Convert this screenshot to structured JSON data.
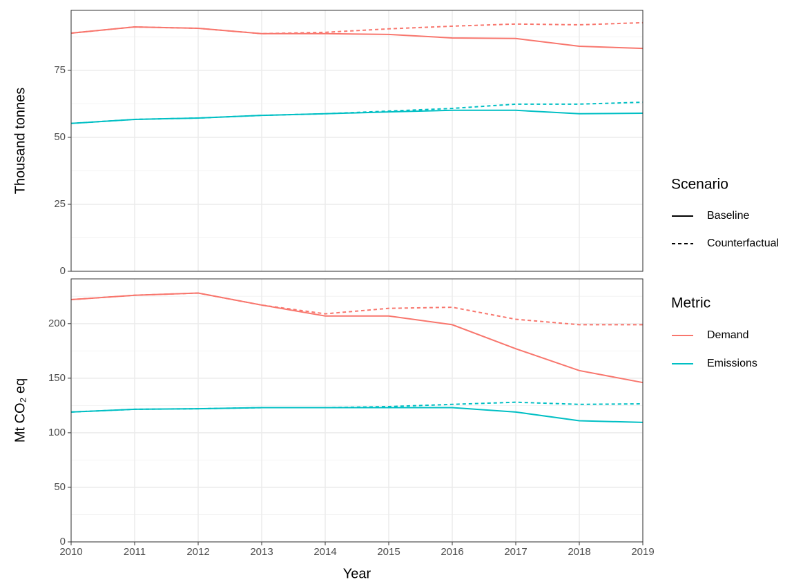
{
  "chart_data": {
    "type": "line",
    "xlabel": "Year",
    "x": [
      2010,
      2011,
      2012,
      2013,
      2014,
      2015,
      2016,
      2017,
      2018,
      2019
    ],
    "xlim": [
      2010,
      2019
    ],
    "xticks": [
      2010,
      2011,
      2012,
      2013,
      2014,
      2015,
      2016,
      2017,
      2018,
      2019
    ],
    "grid": true,
    "legend": {
      "scenario": {
        "title": "Scenario",
        "entries": [
          {
            "name": "Baseline",
            "dash": "solid"
          },
          {
            "name": "Counterfactual",
            "dash": "dashed"
          }
        ]
      },
      "metric": {
        "title": "Metric",
        "entries": [
          {
            "name": "Demand",
            "color": "#f8766d"
          },
          {
            "name": "Emissions",
            "color": "#00bfc4"
          }
        ]
      }
    },
    "panels": [
      {
        "ylabel": "Thousand tonnes",
        "ylim": [
          0,
          97.4
        ],
        "yticks": [
          0,
          25,
          50,
          75
        ],
        "lines": [
          [
            [
              88.9,
              91.2,
              90.7,
              88.7,
              88.7,
              88.4,
              87.1,
              86.9,
              84.0,
              83.2
            ],
            [
              88.9,
              91.2,
              90.7,
              88.7,
              89.2,
              90.5,
              91.5,
              92.3,
              92.0,
              92.8
            ]
          ],
          [
            [
              55.2,
              56.7,
              57.2,
              58.2,
              58.8,
              59.5,
              60.1,
              60.1,
              58.8,
              59.0
            ],
            [
              55.2,
              56.7,
              57.2,
              58.2,
              58.8,
              59.8,
              60.8,
              62.4,
              62.4,
              63.1
            ]
          ]
        ]
      },
      {
        "ylabel": "Mt CO₂ eq",
        "ylim": [
          0,
          241
        ],
        "yticks": [
          0,
          50,
          100,
          150,
          200
        ],
        "lines": [
          [
            [
              222,
              226,
              228,
              217,
              207,
              207,
              199,
              177,
              157,
              146
            ],
            [
              222,
              226,
              228,
              217,
              209,
              214,
              215,
              204,
              199,
              199
            ]
          ],
          [
            [
              119,
              121.5,
              122,
              123,
              123,
              123,
              123,
              119,
              111,
              109.5
            ],
            [
              119,
              121.5,
              122,
              123,
              123,
              124,
              126,
              128,
              126,
              126.5
            ]
          ]
        ]
      }
    ]
  }
}
